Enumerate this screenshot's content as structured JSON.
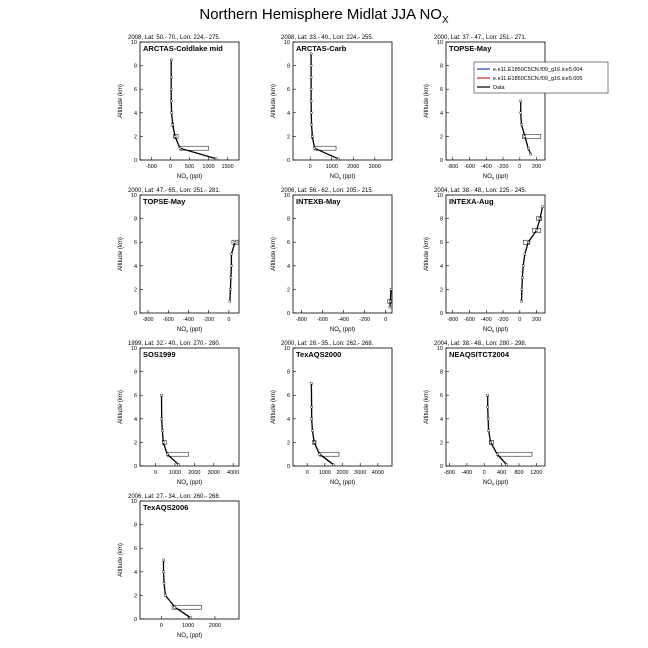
{
  "title": "Northern Hemisphere Midlat JJA NO",
  "title_sub": "X",
  "legend": {
    "entries": [
      {
        "label": "e.e11.E1850C5CN.f09_g16.ice5.004",
        "color": "#1f3fbf"
      },
      {
        "label": "e.e11.E1850C5CN.f09_g16.ice5.005",
        "color": "#d02020"
      },
      {
        "label": "Data",
        "color": "#000000"
      }
    ]
  },
  "chart_data": [
    {
      "type": "line",
      "name": "ARCTAS-Coldlake mid",
      "header": "2008, Lat: 50.- 70., Lon: 224.- 275.",
      "xlabel": "NO",
      "xlabel_sub": "x",
      "xunit": " (ppt)",
      "ylabel": "Altitude (km)",
      "xlim": [
        -800,
        1800
      ],
      "ylim": [
        0,
        10
      ],
      "xticks": [
        -500,
        0,
        500,
        1000,
        1500
      ],
      "yticks": [
        0,
        2,
        4,
        6,
        8,
        10
      ],
      "series": [
        {
          "x": [
            1200,
            250,
            120,
            60,
            30,
            20,
            20,
            20,
            20
          ],
          "y": [
            0.1,
            1,
            2,
            3,
            4,
            5,
            6,
            7,
            8.5
          ]
        }
      ],
      "boxes": [
        {
          "x": [
            250,
            1000
          ],
          "y": [
            1,
            1
          ]
        },
        {
          "x": [
            80,
            200
          ],
          "y": [
            2,
            2
          ]
        },
        {
          "x": [
            40,
            80
          ],
          "y": [
            3,
            3
          ]
        }
      ]
    },
    {
      "type": "line",
      "name": "ARCTAS-Carb",
      "header": "2008, Lat: 33.- 40., Lon: 224.- 255.",
      "xlabel": "NO",
      "xlabel_sub": "x",
      "xunit": " (ppt)",
      "ylabel": "Altitude (km)",
      "xlim": [
        -800,
        3800
      ],
      "ylim": [
        0,
        10
      ],
      "xticks": [
        0,
        1000,
        2000,
        3000
      ],
      "yticks": [
        0,
        2,
        4,
        6,
        8,
        10
      ],
      "series": [
        {
          "x": [
            1300,
            200,
            100,
            60,
            50,
            40,
            40,
            40,
            40,
            40
          ],
          "y": [
            0.1,
            1,
            2,
            3,
            4,
            5,
            6,
            7,
            8,
            9
          ]
        }
      ],
      "boxes": [
        {
          "x": [
            200,
            1200
          ],
          "y": [
            1,
            1
          ]
        },
        {
          "x": [
            60,
            120
          ],
          "y": [
            2,
            2
          ]
        }
      ]
    },
    {
      "type": "line",
      "name": "TOPSE-May",
      "header": "2000, Lat: 37.- 47., Lon: 251.- 271.",
      "xlabel": "NO",
      "xlabel_sub": "x",
      "xunit": " (ppt)",
      "ylabel": "Altitude (km)",
      "xlim": [
        -880,
        300
      ],
      "ylim": [
        0,
        10
      ],
      "xticks": [
        -800,
        -600,
        -400,
        -200,
        0,
        200
      ],
      "yticks": [
        0,
        2,
        4,
        6,
        8,
        10
      ],
      "series": [
        {
          "x": [
            130,
            100,
            60,
            20,
            10,
            10
          ],
          "y": [
            0.5,
            1,
            2,
            3,
            4,
            5
          ]
        }
      ],
      "boxes": [
        {
          "x": [
            30,
            250
          ],
          "y": [
            2,
            2
          ]
        }
      ]
    },
    {
      "type": "line",
      "name": "TOPSE-May",
      "header": "2000, Lat: 47.- 65., Lon: 251.- 281.",
      "xlabel": "NO",
      "xlabel_sub": "x",
      "xunit": " (ppt)",
      "ylabel": "Altitude (km)",
      "xlim": [
        -880,
        100
      ],
      "ylim": [
        0,
        10
      ],
      "xticks": [
        -800,
        -600,
        -400,
        -200,
        0
      ],
      "yticks": [
        0,
        2,
        4,
        6,
        8,
        10
      ],
      "series": [
        {
          "x": [
            10,
            15,
            20,
            25,
            25,
            60
          ],
          "y": [
            1,
            2,
            3,
            4,
            5,
            6
          ]
        }
      ],
      "boxes": [
        {
          "x": [
            30,
            90
          ],
          "y": [
            6,
            6
          ]
        }
      ]
    },
    {
      "type": "line",
      "name": "INTEXB-May",
      "header": "2006, Lat: 56.- 62., Lon: 205.- 215.",
      "xlabel": "NO",
      "xlabel_sub": "x",
      "xunit": " (ppt)",
      "ylabel": "Altitude (km)",
      "xlim": [
        -880,
        60
      ],
      "ylim": [
        0,
        10
      ],
      "xticks": [
        -800,
        -600,
        -400,
        -200,
        0
      ],
      "yticks": [
        0,
        2,
        4,
        6,
        8,
        10
      ],
      "series": [
        {
          "x": [
            40,
            45,
            50
          ],
          "y": [
            0.5,
            1,
            2
          ]
        }
      ],
      "boxes": [
        {
          "x": [
            20,
            60
          ],
          "y": [
            1,
            1
          ]
        }
      ]
    },
    {
      "type": "line",
      "name": "INTEXA-Aug",
      "header": "2004, Lat: 38.- 48., Lon: 225.- 245.",
      "xlabel": "NO",
      "xlabel_sub": "x",
      "xunit": " (ppt)",
      "ylabel": "Altitude (km)",
      "xlim": [
        -880,
        300
      ],
      "ylim": [
        0,
        10
      ],
      "xticks": [
        -800,
        -600,
        -400,
        -200,
        0,
        200
      ],
      "yticks": [
        0,
        2,
        4,
        6,
        8,
        10
      ],
      "series": [
        {
          "x": [
            20,
            25,
            30,
            40,
            60,
            100,
            200,
            240,
            270
          ],
          "y": [
            1,
            2,
            3,
            4,
            5,
            6,
            7,
            8,
            9
          ]
        }
      ],
      "boxes": [
        {
          "x": [
            40,
            120
          ],
          "y": [
            6,
            6
          ]
        },
        {
          "x": [
            150,
            250
          ],
          "y": [
            7,
            7
          ]
        },
        {
          "x": [
            200,
            260
          ],
          "y": [
            8,
            8
          ]
        }
      ]
    },
    {
      "type": "line",
      "name": "SOS1999",
      "header": "1999, Lat: 32.- 40., Lon: 270.- 280.",
      "xlabel": "NO",
      "xlabel_sub": "x",
      "xunit": " (ppt)",
      "ylabel": "Altitude (km)",
      "xlim": [
        -800,
        4300
      ],
      "ylim": [
        0,
        10
      ],
      "xticks": [
        0,
        1000,
        2000,
        3000,
        4000
      ],
      "yticks": [
        0,
        2,
        4,
        6,
        8,
        10
      ],
      "series": [
        {
          "x": [
            1200,
            600,
            400,
            350,
            320,
            310
          ],
          "y": [
            0.1,
            1,
            2,
            3,
            4,
            6
          ]
        }
      ],
      "boxes": [
        {
          "x": [
            600,
            1700
          ],
          "y": [
            1,
            1
          ]
        },
        {
          "x": [
            350,
            550
          ],
          "y": [
            2,
            2
          ]
        }
      ]
    },
    {
      "type": "line",
      "name": "TexAQS2000",
      "header": "2000, Lat: 28.- 35., Lon: 262.- 268.",
      "xlabel": "NO",
      "xlabel_sub": "x",
      "xunit": " (ppt)",
      "ylabel": "Altitude (km)",
      "xlim": [
        -800,
        4800
      ],
      "ylim": [
        0,
        10
      ],
      "xticks": [
        0,
        1000,
        2000,
        3000,
        4000
      ],
      "yticks": [
        0,
        2,
        4,
        6,
        8,
        10
      ],
      "series": [
        {
          "x": [
            1500,
            700,
            400,
            300,
            260,
            250,
            240
          ],
          "y": [
            0.1,
            1,
            2,
            3,
            4,
            5,
            7
          ]
        }
      ],
      "boxes": [
        {
          "x": [
            700,
            1800
          ],
          "y": [
            1,
            1
          ]
        },
        {
          "x": [
            300,
            500
          ],
          "y": [
            2,
            2
          ]
        }
      ]
    },
    {
      "type": "line",
      "name": "NEAQSITCT2004",
      "header": "2004, Lat: 38.- 48., Lon: 280.- 298.",
      "xlabel": "NO",
      "xlabel_sub": "x",
      "xunit": " (ppt)",
      "ylabel": "Altitude (km)",
      "xlim": [
        -880,
        1400
      ],
      "ylim": [
        0,
        10
      ],
      "xticks": [
        -800,
        -400,
        0,
        400,
        800,
        1200
      ],
      "yticks": [
        0,
        2,
        4,
        6,
        8,
        10
      ],
      "series": [
        {
          "x": [
            520,
            300,
            150,
            100,
            90,
            80,
            80
          ],
          "y": [
            0.1,
            1,
            2,
            3,
            4,
            5,
            6
          ]
        }
      ],
      "boxes": [
        {
          "x": [
            300,
            1100
          ],
          "y": [
            1,
            1
          ]
        },
        {
          "x": [
            120,
            220
          ],
          "y": [
            2,
            2
          ]
        }
      ]
    },
    {
      "type": "line",
      "name": "TexAQS2006",
      "header": "2006, Lat: 27.- 34., Lon: 260.- 268.",
      "xlabel": "NO",
      "xlabel_sub": "x",
      "xunit": " (ppt)",
      "ylabel": "Altitude (km)",
      "xlim": [
        -800,
        2900
      ],
      "ylim": [
        0,
        10
      ],
      "xticks": [
        0,
        1000,
        2000
      ],
      "yticks": [
        0,
        2,
        4,
        6,
        8,
        10
      ],
      "series": [
        {
          "x": [
            1100,
            500,
            150,
            100,
            80,
            80
          ],
          "y": [
            0.1,
            1,
            2,
            3,
            4,
            5
          ]
        }
      ],
      "boxes": [
        {
          "x": [
            400,
            1500
          ],
          "y": [
            1,
            1
          ]
        }
      ]
    }
  ]
}
